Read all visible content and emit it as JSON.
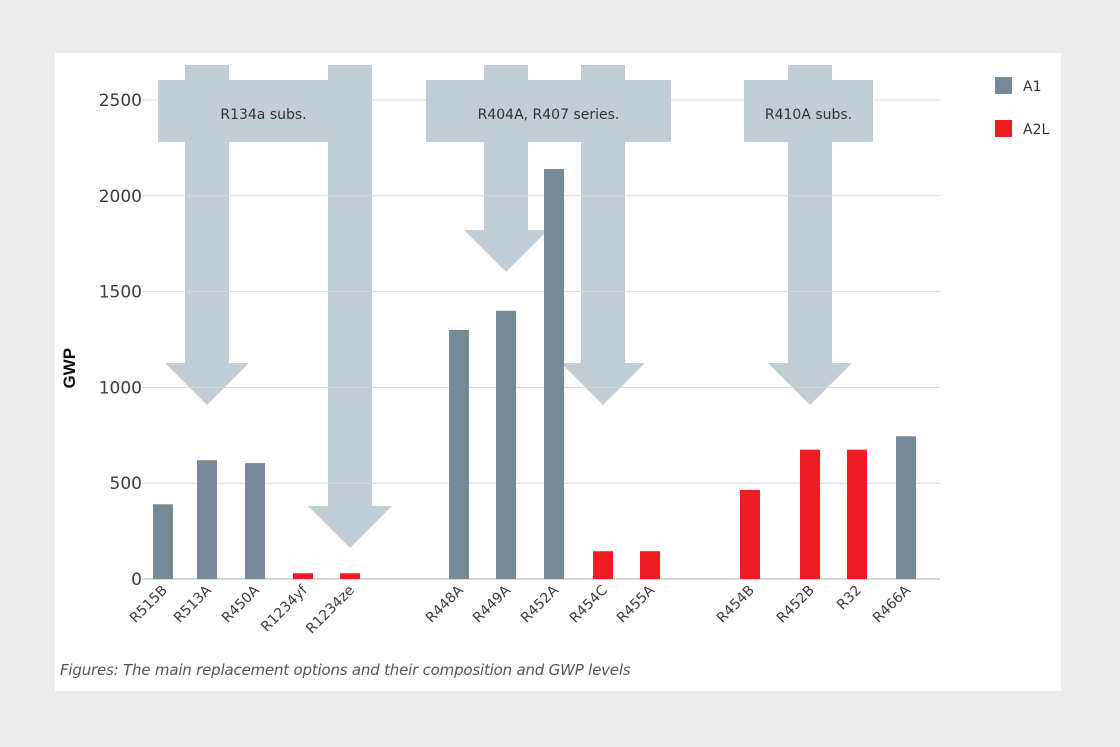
{
  "chart_data": {
    "type": "bar",
    "ylabel": "GWP",
    "ylim": [
      0,
      2700
    ],
    "yticks": [
      0,
      500,
      1000,
      1500,
      2000,
      2500
    ],
    "grid": true,
    "legend_position": "top-right",
    "series": [
      {
        "name": "A1",
        "color": "#778a96"
      },
      {
        "name": "A2L",
        "color": "#ee1c25"
      }
    ],
    "bars": [
      {
        "label": "R515B",
        "value": 390,
        "class": "A1"
      },
      {
        "label": "R513A",
        "value": 620,
        "class": "A1"
      },
      {
        "label": "R450A",
        "value": 605,
        "class": "A1"
      },
      {
        "label": "R1234yf",
        "value": 30,
        "class": "A2L"
      },
      {
        "label": "R1234ze",
        "value": 30,
        "class": "A2L"
      },
      {
        "label": "R448A",
        "value": 1300,
        "class": "A1"
      },
      {
        "label": "R449A",
        "value": 1400,
        "class": "A1"
      },
      {
        "label": "R452A",
        "value": 2140,
        "class": "A1"
      },
      {
        "label": "R454C",
        "value": 145,
        "class": "A2L"
      },
      {
        "label": "R455A",
        "value": 145,
        "class": "A2L"
      },
      {
        "label": "R454B",
        "value": 465,
        "class": "A2L"
      },
      {
        "label": "R452B",
        "value": 675,
        "class": "A2L"
      },
      {
        "label": "R32",
        "value": 675,
        "class": "A2L"
      },
      {
        "label": "R466A",
        "value": 745,
        "class": "A1"
      }
    ],
    "groups": [
      {
        "label": "R134a subs.",
        "arrows_to": [
          "R513A",
          "R1234ze"
        ]
      },
      {
        "label": "R404A, R407 series.",
        "arrows_to": [
          "R449A",
          "R454C"
        ]
      },
      {
        "label": "R410A subs.",
        "arrows_to": [
          "R452B"
        ]
      }
    ]
  },
  "colors": {
    "arrow": "#c2ced6",
    "grid": "#d9d9d9",
    "axis": "#b0b0b0"
  },
  "caption": "Figures: The main replacement options and their composition and GWP levels"
}
